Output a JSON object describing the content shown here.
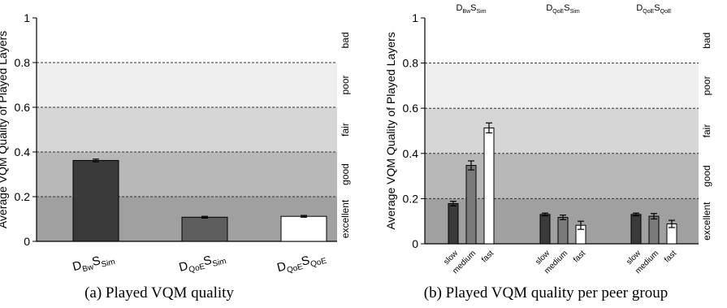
{
  "chart_data": [
    {
      "type": "bar",
      "caption": "(a) Played VQM quality",
      "ylabel": "Average VQM Quality of Played Layers",
      "ylim": [
        0,
        1
      ],
      "yticks": [
        "0",
        "0.2",
        "0.4",
        "0.6",
        "0.8",
        "1"
      ],
      "categories": [
        {
          "main": "D",
          "sub1": "Bw",
          "mid": "S",
          "sub2": "Sim"
        },
        {
          "main": "D",
          "sub1": "QoE",
          "mid": "S",
          "sub2": "Sim"
        },
        {
          "main": "D",
          "sub1": "QoE",
          "mid": "S",
          "sub2": "QoE"
        }
      ],
      "values": [
        0.362,
        0.108,
        0.112
      ],
      "errors": [
        0.006,
        0.004,
        0.004
      ],
      "colors": [
        "#3a3a3a",
        "#5e5e5e",
        "#ffffff"
      ],
      "bands": [
        {
          "label": "excellent",
          "from": 0,
          "to": 0.2,
          "color": "#a0a0a0"
        },
        {
          "label": "good",
          "from": 0.2,
          "to": 0.4,
          "color": "#b8b8b8"
        },
        {
          "label": "fair",
          "from": 0.4,
          "to": 0.6,
          "color": "#d6d6d6"
        },
        {
          "label": "poor",
          "from": 0.6,
          "to": 0.8,
          "color": "#efefef"
        },
        {
          "label": "bad",
          "from": 0.8,
          "to": 1.0,
          "color": "#ffffff"
        }
      ]
    },
    {
      "type": "bar",
      "caption": "(b) Played VQM quality per peer group",
      "ylabel": "Average VQM Quality of Played Layers",
      "ylim": [
        0,
        1
      ],
      "yticks": [
        "0",
        "0.2",
        "0.4",
        "0.6",
        "0.8",
        "1"
      ],
      "groups": [
        {
          "main": "D",
          "sub1": "Bw",
          "mid": "S",
          "sub2": "Sim"
        },
        {
          "main": "D",
          "sub1": "QoE",
          "mid": "S",
          "sub2": "Sim"
        },
        {
          "main": "D",
          "sub1": "QoE",
          "mid": "S",
          "sub2": "QoE"
        }
      ],
      "categories": [
        "slow",
        "medium",
        "fast"
      ],
      "series": [
        {
          "values": [
            0.178,
            0.13,
            0.13
          ],
          "errors": [
            0.01,
            0.006,
            0.006
          ],
          "color": "#3a3a3a"
        },
        {
          "values": [
            0.347,
            0.117,
            0.122
          ],
          "errors": [
            0.02,
            0.01,
            0.012
          ],
          "color": "#7a7a7a"
        },
        {
          "values": [
            0.513,
            0.082,
            0.088
          ],
          "errors": [
            0.022,
            0.018,
            0.016
          ],
          "color": "#ffffff"
        }
      ],
      "bands": [
        {
          "label": "excellent",
          "from": 0,
          "to": 0.2,
          "color": "#a0a0a0"
        },
        {
          "label": "good",
          "from": 0.2,
          "to": 0.4,
          "color": "#b8b8b8"
        },
        {
          "label": "fair",
          "from": 0.4,
          "to": 0.6,
          "color": "#d6d6d6"
        },
        {
          "label": "poor",
          "from": 0.6,
          "to": 0.8,
          "color": "#efefef"
        },
        {
          "label": "bad",
          "from": 0.8,
          "to": 1.0,
          "color": "#ffffff"
        }
      ]
    }
  ]
}
